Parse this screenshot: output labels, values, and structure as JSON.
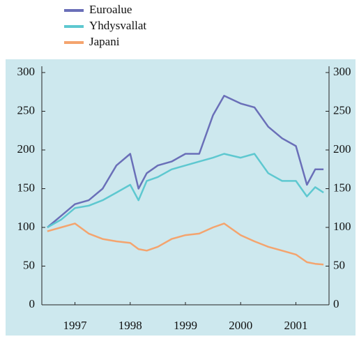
{
  "chart_data": {
    "type": "line",
    "x": [
      1997.0,
      1997.25,
      1997.5,
      1997.75,
      1998.0,
      1998.25,
      1998.5,
      1998.65,
      1998.8,
      1999.0,
      1999.25,
      1999.5,
      1999.75,
      2000.0,
      2000.2,
      2000.5,
      2000.75,
      2001.0,
      2001.25,
      2001.5,
      2001.7,
      2001.85,
      2002.0
    ],
    "series": [
      {
        "name": "Euroalue",
        "color": "#6a6fb8",
        "values": [
          100,
          115,
          130,
          135,
          150,
          180,
          195,
          150,
          170,
          180,
          185,
          195,
          195,
          245,
          270,
          260,
          255,
          230,
          215,
          205,
          155,
          175,
          175
        ]
      },
      {
        "name": "Yhdysvallat",
        "color": "#5ec8d0",
        "values": [
          100,
          110,
          125,
          128,
          135,
          145,
          155,
          135,
          160,
          165,
          175,
          180,
          185,
          190,
          195,
          190,
          195,
          170,
          160,
          160,
          140,
          152,
          145
        ]
      },
      {
        "name": "Japani",
        "color": "#f4a46e",
        "values": [
          95,
          100,
          105,
          92,
          85,
          82,
          80,
          72,
          70,
          75,
          85,
          90,
          92,
          100,
          105,
          90,
          82,
          75,
          70,
          65,
          55,
          53,
          52
        ]
      }
    ],
    "xlim": [
      1996.9,
      2002.1
    ],
    "xticks": [
      {
        "value": 1997.5,
        "label": "1997"
      },
      {
        "value": 1998.5,
        "label": "1998"
      },
      {
        "value": 1999.5,
        "label": "1999"
      },
      {
        "value": 2000.5,
        "label": "2000"
      },
      {
        "value": 2001.5,
        "label": "2001"
      }
    ],
    "ylim": [
      0,
      300
    ],
    "yticks": [
      0,
      50,
      100,
      150,
      200,
      250,
      300
    ],
    "y2lim": [
      0,
      300
    ],
    "y2ticks": [
      0,
      50,
      100,
      150,
      200,
      250,
      300
    ],
    "background": "#cde8ee"
  }
}
